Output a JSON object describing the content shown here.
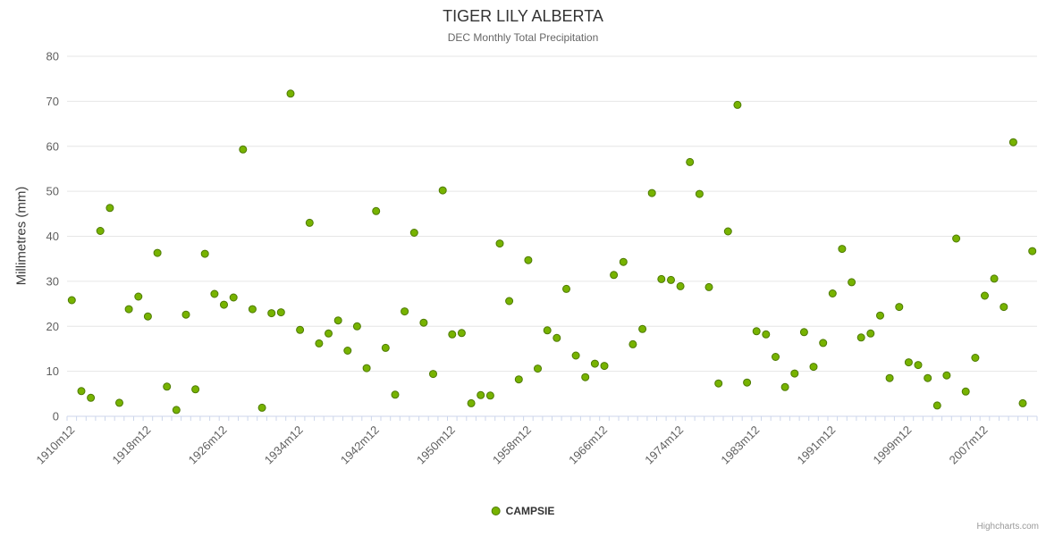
{
  "chart": {
    "title": "TIGER LILY ALBERTA",
    "subtitle": "DEC Monthly Total Precipitation",
    "ylabel": "Millimetres (mm)",
    "legend_label": "CAMPSIE",
    "credit": "Highcharts.com",
    "colors": {
      "marker_fill": "#77b300",
      "marker_stroke": "#4d7a00",
      "grid": "#e6e6e6",
      "axis_line": "#ccd6eb",
      "tick": "#ccd6eb",
      "label_text": "#606060"
    }
  },
  "chart_data": {
    "type": "scatter",
    "title": "TIGER LILY ALBERTA",
    "subtitle": "DEC Monthly Total Precipitation",
    "xlabel": "",
    "ylabel": "Millimetres (mm)",
    "ylim": [
      0,
      80
    ],
    "yticks": [
      0,
      10,
      20,
      30,
      40,
      50,
      60,
      70,
      80
    ],
    "grid": "horizontal",
    "legend_position": "bottom-center",
    "xtick_labels": [
      {
        "index": 0,
        "label": "1910m12"
      },
      {
        "index": 8,
        "label": "1918m12"
      },
      {
        "index": 16,
        "label": "1926m12"
      },
      {
        "index": 24,
        "label": "1934m12"
      },
      {
        "index": 32,
        "label": "1942m12"
      },
      {
        "index": 40,
        "label": "1950m12"
      },
      {
        "index": 48,
        "label": "1958m12"
      },
      {
        "index": 56,
        "label": "1966m12"
      },
      {
        "index": 64,
        "label": "1974m12"
      },
      {
        "index": 72,
        "label": "1983m12"
      },
      {
        "index": 80,
        "label": "1991m12"
      },
      {
        "index": 88,
        "label": "1999m12"
      },
      {
        "index": 96,
        "label": "2007m12"
      }
    ],
    "series": [
      {
        "name": "CAMPSIE",
        "values": [
          25.8,
          5.6,
          4.1,
          41.2,
          46.3,
          3.0,
          23.8,
          26.6,
          22.2,
          36.3,
          6.6,
          1.4,
          22.6,
          6.0,
          36.1,
          27.2,
          24.8,
          26.4,
          59.3,
          23.8,
          1.9,
          22.9,
          23.1,
          71.7,
          19.2,
          43.0,
          16.2,
          18.4,
          21.3,
          14.6,
          20.0,
          10.7,
          45.6,
          15.2,
          4.8,
          23.3,
          40.8,
          20.8,
          9.4,
          50.2,
          18.2,
          18.5,
          2.9,
          4.7,
          4.6,
          38.4,
          25.6,
          8.2,
          34.7,
          10.6,
          19.1,
          17.4,
          28.3,
          13.5,
          8.7,
          11.7,
          11.2,
          31.4,
          34.3,
          16.0,
          19.4,
          49.6,
          30.5,
          30.3,
          28.9,
          56.5,
          49.4,
          28.7,
          7.3,
          41.1,
          69.2,
          7.5,
          18.9,
          18.2,
          13.2,
          6.5,
          9.5,
          18.7,
          11.0,
          16.3,
          27.3,
          37.2,
          29.8,
          17.5,
          18.4,
          22.4,
          8.5,
          24.3,
          12.0,
          11.4,
          8.5,
          2.4,
          9.1,
          39.5,
          5.5,
          13.0,
          26.8,
          30.6,
          24.3,
          60.9,
          2.9,
          36.7
        ]
      }
    ]
  }
}
